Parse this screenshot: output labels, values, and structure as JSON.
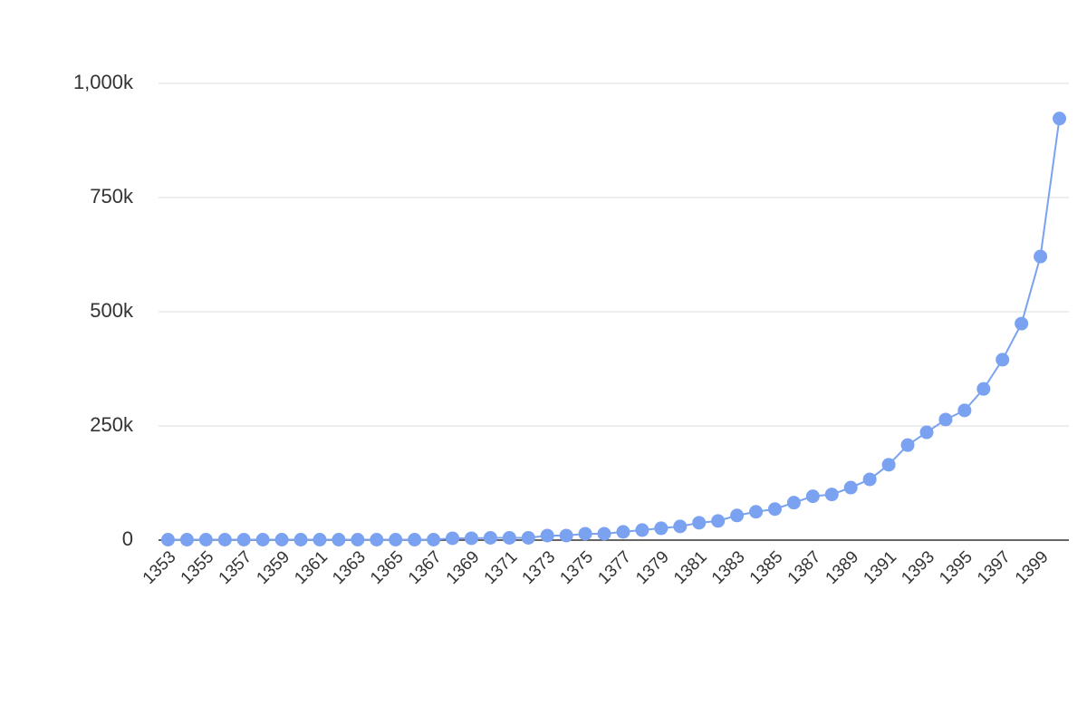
{
  "chart_data": {
    "type": "line",
    "categories": [
      "1353",
      null,
      "1355",
      null,
      "1357",
      null,
      "1359",
      null,
      "1361",
      null,
      "1363",
      null,
      "1365",
      null,
      "1367",
      null,
      "1369",
      null,
      "1371",
      null,
      "1373",
      null,
      "1375",
      null,
      "1377",
      null,
      "1379",
      null,
      "1381",
      null,
      "1383",
      null,
      "1385",
      null,
      "1387",
      null,
      "1389",
      null,
      "1391",
      null,
      "1393",
      null,
      "1395",
      null,
      "1397",
      null,
      "1399",
      null
    ],
    "series": [
      {
        "color": "#7aa2f0",
        "values": [
          1000,
          1000,
          1000,
          1000,
          1000,
          1000,
          1000,
          1000,
          1000,
          1000,
          1000,
          1000,
          1000,
          1000,
          1000,
          4000,
          4000,
          5000,
          5000,
          5000,
          10000,
          10000,
          14000,
          14000,
          18000,
          22000,
          26000,
          30000,
          38000,
          42000,
          54000,
          62000,
          68000,
          82000,
          96000,
          100000,
          115000,
          133000,
          165000,
          208000,
          236000,
          264000,
          284000,
          331000,
          395000,
          474000,
          621000,
          923000
        ]
      }
    ],
    "ylim": [
      0,
      1000000
    ],
    "yticks": [
      0,
      {
        "value": 250000,
        "label": "250k"
      },
      {
        "value": 500000,
        "label": "500k"
      },
      {
        "value": 750000,
        "label": "750k"
      },
      {
        "value": 1000000,
        "label": "1,000k"
      }
    ],
    "grid": true
  }
}
